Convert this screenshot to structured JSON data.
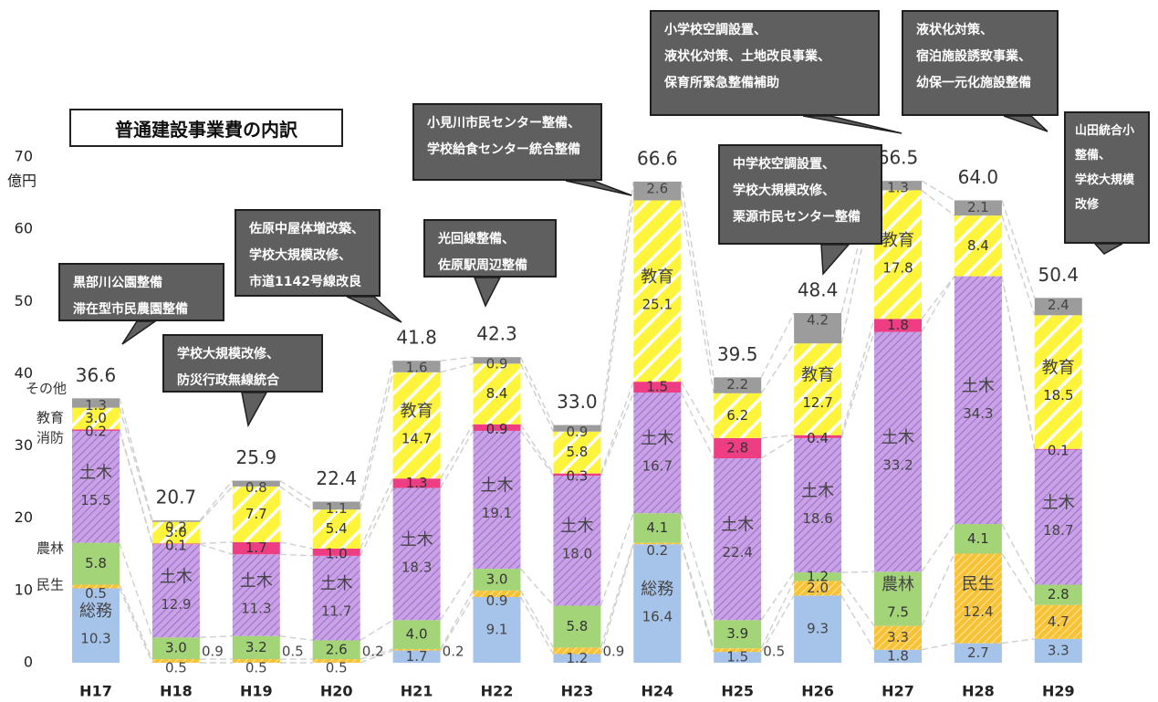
{
  "chart_data": {
    "type": "bar",
    "stacked": true,
    "title": "普通建設事業費の内訳",
    "y_unit": "億円",
    "ylim": [
      0,
      70
    ],
    "y_ticks": [
      "0",
      "10",
      "20",
      "30",
      "40",
      "50",
      "60",
      "70"
    ],
    "categories": [
      "H17",
      "H18",
      "H19",
      "H20",
      "H21",
      "H22",
      "H23",
      "H24",
      "H25",
      "H26",
      "H27",
      "H28",
      "H29"
    ],
    "totals": [
      "36.6",
      "20.7",
      "25.9",
      "22.4",
      "41.8",
      "42.3",
      "33.0",
      "66.6",
      "39.5",
      "48.4",
      "66.5",
      "64.0",
      "50.4"
    ],
    "series": [
      {
        "name": "総務",
        "values": [
          10.3,
          0,
          0,
          0,
          1.7,
          9.1,
          1.2,
          16.4,
          1.5,
          9.3,
          1.8,
          2.7,
          3.3
        ],
        "color": "#a6c3ea"
      },
      {
        "name": "民生",
        "values": [
          0.5,
          0.5,
          0.5,
          0.5,
          0.2,
          0.9,
          0.9,
          0.2,
          0.5,
          2.0,
          3.3,
          12.4,
          4.7
        ],
        "color": "#f7c52c"
      },
      {
        "name": "農林",
        "values": [
          5.8,
          3.0,
          3.2,
          2.6,
          4.0,
          3.0,
          5.8,
          4.1,
          3.9,
          1.2,
          7.5,
          4.1,
          2.8
        ],
        "color": "#a3d477"
      },
      {
        "name": "土木",
        "values": [
          15.5,
          12.9,
          11.3,
          11.7,
          18.3,
          19.1,
          18.0,
          16.7,
          22.4,
          18.6,
          33.2,
          34.3,
          18.7
        ],
        "color": "#c59ae0"
      },
      {
        "name": "消防",
        "values": [
          0.2,
          0.1,
          1.7,
          1.0,
          1.3,
          0.9,
          0.3,
          1.5,
          2.8,
          0.4,
          1.8,
          0,
          0.1
        ],
        "color": "#ee3d82"
      },
      {
        "name": "教育",
        "values": [
          3.0,
          3.0,
          7.7,
          5.4,
          14.7,
          8.4,
          5.8,
          25.1,
          6.2,
          12.7,
          17.8,
          8.4,
          18.5
        ],
        "color": "#fff23a"
      },
      {
        "name": "その他",
        "values": [
          1.3,
          0.2,
          0.8,
          1.1,
          1.6,
          0.9,
          0.9,
          2.6,
          2.2,
          4.2,
          1.3,
          2.1,
          2.4
        ],
        "color": "#9c9c9c"
      }
    ],
    "segment_labels": [
      [
        [
          "総務",
          "10.3"
        ],
        [
          "0.5"
        ],
        [
          "5.8"
        ],
        [
          "土木",
          "15.5"
        ],
        [
          "0.2"
        ],
        [
          "3.0"
        ],
        [
          "1.3"
        ]
      ],
      [
        [],
        [
          "0.5"
        ],
        [
          "3.0"
        ],
        [
          "土木",
          "12.9"
        ],
        [
          "0.1"
        ],
        [
          "3.0"
        ],
        [
          "0.2"
        ]
      ],
      [
        [],
        [
          "0.5"
        ],
        [
          "3.2"
        ],
        [
          "土木",
          "11.3"
        ],
        [
          "1.7"
        ],
        [
          "7.7"
        ],
        [
          "0.8"
        ]
      ],
      [
        [],
        [
          "0.5"
        ],
        [
          "2.6"
        ],
        [
          "土木",
          "11.7"
        ],
        [
          "1.0"
        ],
        [
          "5.4"
        ],
        [
          "1.1"
        ]
      ],
      [
        [
          "1.7"
        ],
        [],
        [
          "4.0"
        ],
        [
          "土木",
          "18.3"
        ],
        [
          "1.3"
        ],
        [
          "教育",
          "14.7"
        ],
        [
          "1.6"
        ]
      ],
      [
        [
          "9.1"
        ],
        [
          "0.9"
        ],
        [
          "3.0"
        ],
        [
          "土木",
          "19.1"
        ],
        [
          "0.9"
        ],
        [
          "8.4"
        ],
        [
          "0.9"
        ]
      ],
      [
        [
          "1.2"
        ],
        [],
        [
          "5.8"
        ],
        [
          "土木",
          "18.0"
        ],
        [
          "0.3"
        ],
        [
          "5.8"
        ],
        [
          "0.9"
        ]
      ],
      [
        [
          "総務",
          "16.4"
        ],
        [
          "0.2"
        ],
        [
          "4.1"
        ],
        [
          "土木",
          "16.7"
        ],
        [
          "1.5"
        ],
        [
          "教育",
          "25.1"
        ],
        [
          "2.6"
        ]
      ],
      [
        [
          "1.5"
        ],
        [],
        [
          "3.9"
        ],
        [
          "土木",
          "22.4"
        ],
        [
          "2.8"
        ],
        [
          "6.2"
        ],
        [
          "2.2"
        ]
      ],
      [
        [
          "9.3"
        ],
        [
          "2.0"
        ],
        [
          "1.2"
        ],
        [
          "土木",
          "18.6"
        ],
        [
          "0.4"
        ],
        [
          "教育",
          "12.7"
        ],
        [
          "4.2"
        ]
      ],
      [
        [
          "1.8"
        ],
        [
          "3.3"
        ],
        [
          "農林",
          "7.5"
        ],
        [
          "土木",
          "33.2"
        ],
        [
          "1.8"
        ],
        [
          "教育",
          "17.8"
        ],
        [
          "1.3"
        ]
      ],
      [
        [
          "2.7"
        ],
        [
          "民生",
          "12.4"
        ],
        [
          "4.1"
        ],
        [
          "土木",
          "34.3"
        ],
        [],
        [
          "8.4"
        ],
        [
          "2.1"
        ]
      ],
      [
        [
          "3.3"
        ],
        [
          "4.7"
        ],
        [
          "2.8"
        ],
        [
          "土木",
          "18.7"
        ],
        [
          "0.1"
        ],
        [
          "教育",
          "18.5"
        ],
        [
          "2.4"
        ]
      ]
    ],
    "side_labels": [
      {
        "col": 1,
        "text": "0.9"
      },
      {
        "col": 2,
        "text": "0.5"
      },
      {
        "col": 3,
        "text": "0.2"
      },
      {
        "col": 4,
        "text": "0.2"
      },
      {
        "col": 6,
        "text": "0.9"
      },
      {
        "col": 8,
        "text": "0.5"
      }
    ],
    "left_legend": [
      "その他",
      "教育",
      "消防",
      "農林",
      "民生"
    ],
    "grid": false,
    "connector_lines": true
  },
  "callouts": [
    {
      "text": "黒部川公園整備\n滞在型市民農園整備"
    },
    {
      "text": "学校大規模改修、\n防災行政無線統合"
    },
    {
      "text": "佐原中屋体増改築、\n学校大規模改修、\n市道1142号線改良"
    },
    {
      "text": "光回線整備、\n佐原駅周辺整備"
    },
    {
      "text": "小見川市民センター整備、\n学校給食センター統合整備"
    },
    {
      "text": "小学校空調設置、\n液状化対策、土地改良事業、\n保育所緊急整備補助"
    },
    {
      "text": "中学校空調設置、\n学校大規模改修、\n栗源市民センター整備"
    },
    {
      "text": "液状化対策、\n宿泊施設誘致事業、\n幼保一元化施設整備"
    },
    {
      "text": "山田統合小\n整備、\n学校大規模\n改修"
    }
  ]
}
